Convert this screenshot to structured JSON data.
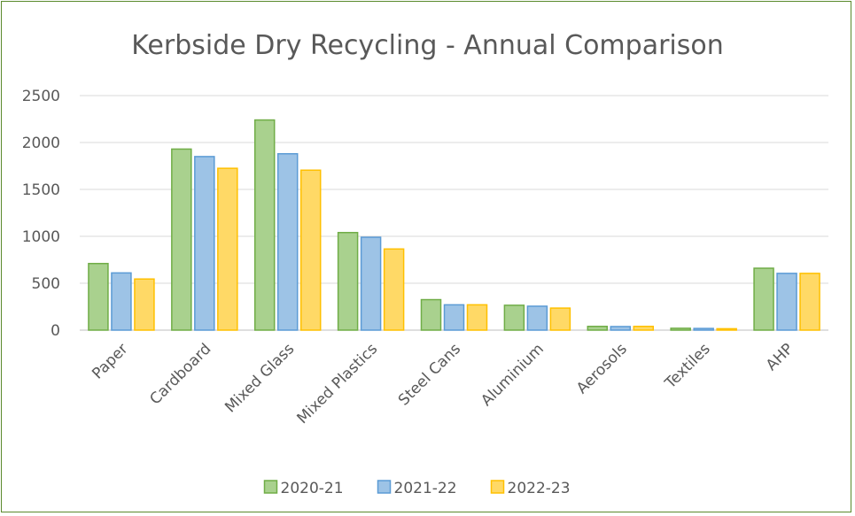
{
  "chart_data": {
    "type": "bar",
    "title": "Kerbside Dry Recycling - Annual Comparison",
    "categories": [
      "Paper",
      "Cardboard",
      "Mixed Glass",
      "Mixed Plastics",
      "Steel Cans",
      "Aluminium",
      "Aerosols",
      "Textiles",
      "AHP"
    ],
    "series": [
      {
        "name": "2020-21",
        "values": [
          710,
          1930,
          2240,
          1040,
          325,
          265,
          40,
          20,
          660
        ],
        "fill": "#a9d18e",
        "stroke": "#70ad47"
      },
      {
        "name": "2021-22",
        "values": [
          610,
          1850,
          1880,
          990,
          270,
          255,
          38,
          18,
          605
        ],
        "fill": "#9dc3e6",
        "stroke": "#5b9bd5"
      },
      {
        "name": "2022-23",
        "values": [
          545,
          1725,
          1705,
          865,
          270,
          235,
          40,
          15,
          605
        ],
        "fill": "#ffd966",
        "stroke": "#ffc000"
      }
    ],
    "ylim": [
      0,
      2500
    ],
    "yticks": [
      "0",
      "500",
      "1000",
      "1500",
      "2000",
      "2500"
    ],
    "grid": true,
    "legend_position": "bottom",
    "xlabel": "",
    "ylabel": ""
  }
}
